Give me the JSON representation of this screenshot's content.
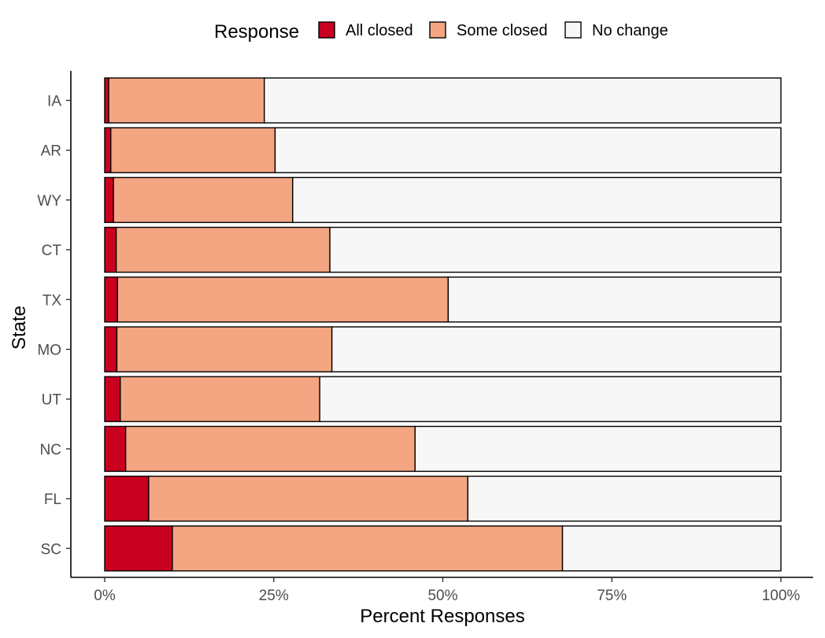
{
  "chart_data": {
    "type": "bar",
    "orientation": "horizontal",
    "stacked": true,
    "normalized": true,
    "categories": [
      "IA",
      "AR",
      "WY",
      "CT",
      "TX",
      "MO",
      "UT",
      "NC",
      "FL",
      "SC"
    ],
    "series": [
      {
        "name": "All closed",
        "color": "#ca0020",
        "values": [
          0.6,
          0.9,
          1.3,
          1.7,
          1.9,
          1.8,
          2.3,
          3.1,
          6.5,
          10.0
        ]
      },
      {
        "name": "Some closed",
        "color": "#f4a582",
        "values": [
          23.0,
          24.3,
          26.5,
          31.6,
          48.9,
          31.8,
          29.5,
          42.8,
          47.2,
          57.7
        ]
      },
      {
        "name": "No change",
        "color": "#f7f7f7",
        "values": [
          76.4,
          74.8,
          72.2,
          66.7,
          49.2,
          66.4,
          68.2,
          54.1,
          46.3,
          32.3
        ]
      }
    ],
    "xlim": [
      0,
      100
    ],
    "xticks": [
      0,
      25,
      50,
      75,
      100
    ],
    "xtick_labels": [
      "0%",
      "25%",
      "50%",
      "75%",
      "100%"
    ],
    "xlabel": "Percent Responses",
    "ylabel": "State",
    "legend": {
      "title": "Response",
      "position": "top"
    },
    "grid": false
  }
}
